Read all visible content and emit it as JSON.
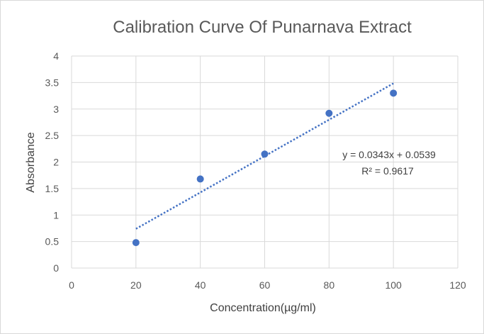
{
  "chart_data": {
    "type": "scatter",
    "title": "Calibration Curve Of Punarnava Extract",
    "xlabel": "Concentration(µg/ml)",
    "ylabel": "Absorbance",
    "xlim": [
      0,
      120
    ],
    "ylim": [
      0,
      4
    ],
    "xticks": [
      0,
      20,
      40,
      60,
      80,
      100,
      120
    ],
    "yticks": [
      0,
      0.5,
      1,
      1.5,
      2,
      2.5,
      3,
      3.5,
      4
    ],
    "xtick_labels": [
      "0",
      "20",
      "40",
      "60",
      "80",
      "100",
      "120"
    ],
    "ytick_labels": [
      "0",
      "0.5",
      "1",
      "1.5",
      "2",
      "2.5",
      "3",
      "3.5",
      "4"
    ],
    "grid": true,
    "series": [
      {
        "name": "Absorbance",
        "x": [
          20,
          40,
          60,
          80,
          100
        ],
        "y": [
          0.48,
          1.68,
          2.15,
          2.92,
          3.3
        ],
        "color": "#4472c4"
      }
    ],
    "trendline": {
      "type": "linear",
      "slope": 0.0343,
      "intercept": 0.0539,
      "x_range": [
        20,
        100
      ],
      "style": "dotted",
      "color": "#4472c4",
      "equation_label": "y = 0.0343x + 0.0539",
      "r2_label": "R² = 0.9617"
    },
    "gridline_color": "#d9d9d9"
  }
}
